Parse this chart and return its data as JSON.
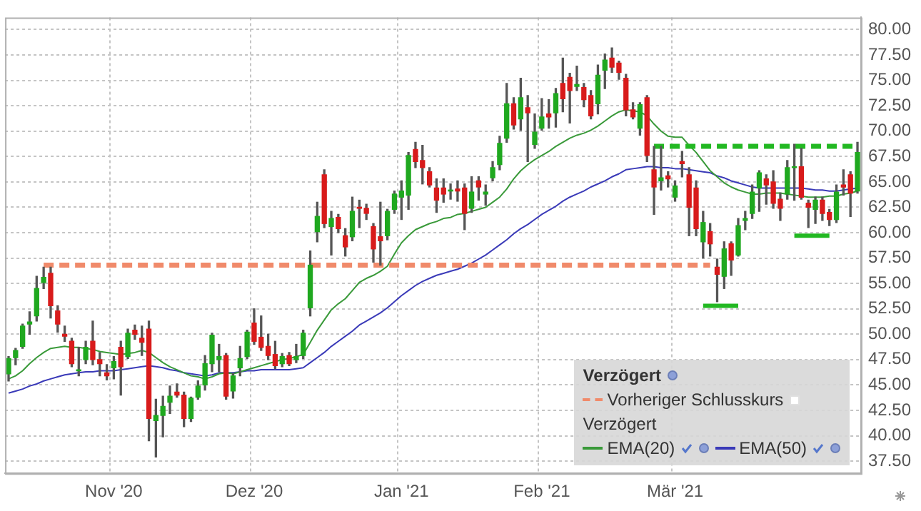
{
  "chart_data": {
    "type": "candlestick",
    "categories": [
      null,
      null,
      null,
      null,
      null,
      null,
      null,
      null,
      null,
      null,
      null,
      null,
      null,
      null,
      null,
      "Nov '20",
      null,
      null,
      null,
      null,
      null,
      null,
      null,
      null,
      null,
      null,
      null,
      null,
      null,
      null,
      null,
      null,
      null,
      null,
      null,
      "Dez '20",
      null,
      null,
      null,
      null,
      null,
      null,
      null,
      null,
      null,
      null,
      null,
      null,
      null,
      null,
      null,
      null,
      null,
      null,
      null,
      null,
      "Jan '21",
      null,
      null,
      null,
      null,
      null,
      null,
      null,
      null,
      null,
      null,
      null,
      null,
      null,
      null,
      null,
      null,
      null,
      null,
      null,
      "Feb '21",
      null,
      null,
      null,
      null,
      null,
      null,
      null,
      null,
      null,
      null,
      null,
      null,
      null,
      null,
      null,
      null,
      null,
      null,
      "Mär '21",
      null,
      null,
      null,
      null,
      null,
      null,
      null,
      null,
      null,
      null,
      null,
      null,
      null,
      null,
      null,
      null,
      null,
      null,
      null,
      null,
      null,
      null,
      null,
      null,
      null,
      null
    ],
    "ohlc": [
      [
        46.1,
        47.8,
        45.4,
        47.6
      ],
      [
        47.7,
        48.6,
        47.0,
        48.4
      ],
      [
        48.8,
        51.0,
        48.6,
        50.8
      ],
      [
        51.0,
        52.2,
        50.0,
        51.2
      ],
      [
        51.8,
        55.7,
        51.3,
        54.5
      ],
      [
        55.1,
        56.6,
        54.5,
        55.6
      ],
      [
        56.0,
        56.6,
        51.6,
        52.8
      ],
      [
        52.3,
        52.8,
        50.2,
        51.0
      ],
      [
        50.0,
        50.8,
        49.3,
        49.8
      ],
      [
        49.3,
        49.6,
        46.8,
        47.1
      ],
      [
        46.4,
        48.7,
        45.9,
        46.5
      ],
      [
        47.5,
        49.3,
        47.1,
        48.7
      ],
      [
        49.3,
        51.3,
        47.0,
        47.5
      ],
      [
        47.5,
        48.2,
        45.9,
        47.1
      ],
      [
        46.2,
        47.0,
        45.5,
        45.9
      ],
      [
        46.7,
        47.8,
        45.6,
        47.3
      ],
      [
        48.7,
        49.3,
        44.0,
        46.8
      ],
      [
        47.8,
        50.5,
        47.6,
        50.1
      ],
      [
        50.4,
        50.9,
        49.5,
        50.0
      ],
      [
        49.6,
        50.8,
        47.9,
        49.2
      ],
      [
        50.5,
        51.3,
        39.5,
        41.7
      ],
      [
        41.5,
        43.6,
        37.9,
        42.0
      ],
      [
        42.0,
        43.9,
        39.9,
        42.9
      ],
      [
        43.3,
        44.9,
        42.2,
        43.9
      ],
      [
        44.3,
        45.1,
        43.8,
        44.0
      ],
      [
        44.0,
        44.3,
        40.9,
        41.7
      ],
      [
        41.7,
        43.8,
        41.4,
        43.7
      ],
      [
        43.8,
        45.4,
        43.6,
        44.9
      ],
      [
        45.0,
        47.9,
        44.5,
        47.1
      ],
      [
        47.1,
        50.1,
        46.3,
        49.9
      ],
      [
        47.5,
        49.0,
        46.3,
        47.8
      ],
      [
        47.9,
        48.1,
        43.6,
        43.9
      ],
      [
        44.4,
        46.1,
        43.7,
        45.9
      ],
      [
        46.7,
        48.8,
        45.9,
        47.6
      ],
      [
        47.8,
        50.4,
        47.6,
        50.2
      ],
      [
        51.1,
        52.5,
        49.0,
        49.3
      ],
      [
        49.7,
        51.8,
        48.4,
        48.7
      ],
      [
        48.8,
        50.0,
        47.5,
        47.9
      ],
      [
        48.0,
        49.3,
        46.6,
        46.9
      ],
      [
        47.1,
        48.1,
        46.8,
        47.8
      ],
      [
        47.9,
        48.2,
        46.9,
        47.1
      ],
      [
        47.5,
        49.0,
        47.2,
        47.8
      ],
      [
        47.9,
        50.4,
        47.6,
        50.1
      ],
      [
        52.6,
        58.2,
        51.8,
        56.8
      ],
      [
        60.1,
        63.0,
        59.1,
        61.6
      ],
      [
        65.7,
        66.2,
        60.5,
        60.9
      ],
      [
        60.6,
        62.1,
        57.8,
        61.4
      ],
      [
        61.5,
        61.8,
        60.0,
        60.4
      ],
      [
        59.7,
        60.4,
        57.7,
        58.6
      ],
      [
        59.6,
        63.5,
        59.2,
        62.1
      ],
      [
        62.5,
        63.2,
        60.5,
        62.4
      ],
      [
        62.4,
        62.8,
        61.3,
        61.9
      ],
      [
        60.6,
        60.9,
        57.1,
        58.4
      ],
      [
        59.6,
        63.0,
        56.8,
        59.2
      ],
      [
        59.7,
        62.3,
        59.3,
        62.1
      ],
      [
        62.3,
        64.1,
        61.9,
        63.8
      ],
      [
        63.5,
        65.1,
        61.3,
        64.1
      ],
      [
        63.7,
        67.9,
        62.3,
        67.6
      ],
      [
        68.2,
        68.9,
        66.4,
        67.0
      ],
      [
        67.1,
        68.6,
        64.8,
        66.4
      ],
      [
        66.0,
        66.4,
        64.5,
        64.7
      ],
      [
        64.4,
        65.3,
        62.0,
        63.2
      ],
      [
        64.4,
        65.3,
        63.0,
        63.8
      ],
      [
        64.1,
        64.8,
        63.3,
        64.2
      ],
      [
        64.3,
        65.1,
        63.1,
        64.1
      ],
      [
        64.4,
        64.8,
        60.3,
        61.9
      ],
      [
        62.4,
        65.5,
        62.0,
        64.0
      ],
      [
        65.1,
        65.5,
        63.2,
        64.5
      ],
      [
        63.8,
        64.7,
        62.7,
        64.0
      ],
      [
        65.4,
        67.0,
        65.1,
        66.4
      ],
      [
        66.7,
        69.5,
        66.2,
        68.8
      ],
      [
        69.3,
        74.7,
        68.9,
        72.7
      ],
      [
        72.7,
        73.3,
        70.2,
        70.6
      ],
      [
        71.2,
        75.2,
        70.1,
        73.3
      ],
      [
        72.3,
        73.5,
        67.0,
        71.8
      ],
      [
        68.7,
        71.7,
        68.3,
        69.9
      ],
      [
        70.3,
        73.2,
        70.1,
        71.4
      ],
      [
        71.7,
        73.1,
        70.3,
        71.4
      ],
      [
        71.8,
        74.2,
        70.4,
        73.7
      ],
      [
        74.7,
        77.2,
        71.9,
        73.2
      ],
      [
        75.3,
        75.7,
        70.8,
        74.0
      ],
      [
        74.4,
        76.4,
        74.0,
        74.6
      ],
      [
        74.3,
        74.7,
        72.4,
        73.1
      ],
      [
        73.5,
        74.0,
        71.2,
        71.5
      ],
      [
        72.7,
        76.5,
        71.7,
        75.5
      ],
      [
        76.0,
        77.6,
        74.2,
        77.0
      ],
      [
        77.2,
        78.2,
        75.8,
        76.3
      ],
      [
        76.7,
        76.9,
        75.1,
        75.8
      ],
      [
        75.2,
        75.6,
        71.5,
        72.1
      ],
      [
        72.1,
        72.8,
        71.2,
        71.4
      ],
      [
        70.3,
        72.8,
        69.6,
        72.6
      ],
      [
        73.3,
        73.5,
        67.0,
        67.6
      ],
      [
        66.2,
        68.5,
        61.8,
        64.5
      ],
      [
        65.1,
        68.5,
        64.2,
        65.4
      ],
      [
        65.6,
        66.0,
        64.5,
        65.3
      ],
      [
        63.5,
        65.1,
        63.1,
        64.6
      ],
      [
        67.0,
        68.0,
        65.5,
        66.8
      ],
      [
        65.7,
        66.4,
        59.7,
        62.5
      ],
      [
        64.4,
        65.1,
        59.7,
        60.4
      ],
      [
        59.1,
        62.1,
        57.5,
        61.0
      ],
      [
        60.1,
        60.9,
        57.7,
        58.9
      ],
      [
        56.6,
        57.4,
        53.2,
        55.9
      ],
      [
        55.7,
        59.1,
        54.5,
        58.4
      ],
      [
        58.9,
        59.1,
        55.8,
        57.3
      ],
      [
        57.8,
        61.4,
        57.7,
        60.7
      ],
      [
        61.2,
        62.1,
        60.3,
        61.4
      ],
      [
        61.9,
        64.7,
        61.4,
        64.0
      ],
      [
        64.4,
        66.1,
        62.1,
        65.9
      ],
      [
        65.3,
        65.7,
        62.8,
        64.7
      ],
      [
        65.0,
        66.1,
        62.4,
        62.9
      ],
      [
        63.3,
        63.9,
        61.2,
        62.4
      ],
      [
        63.8,
        67.1,
        63.3,
        66.4
      ],
      [
        66.4,
        68.7,
        63.2,
        66.5
      ],
      [
        66.5,
        68.3,
        63.3,
        63.5
      ],
      [
        62.9,
        63.2,
        60.5,
        62.5
      ],
      [
        62.3,
        63.5,
        60.9,
        63.2
      ],
      [
        63.2,
        63.5,
        61.2,
        61.9
      ],
      [
        62.0,
        62.3,
        60.7,
        61.3
      ],
      [
        61.3,
        64.7,
        61.0,
        64.0
      ],
      [
        64.7,
        66.2,
        63.7,
        64.5
      ],
      [
        65.7,
        66.0,
        61.6,
        63.9
      ],
      [
        64.1,
        68.9,
        63.9,
        67.9
      ]
    ],
    "colors": [
      "#1fa81f",
      "#1fa81f",
      "#1fa81f",
      "#1fa81f",
      "#1fa81f",
      "#1fa81f",
      "#d81b1b",
      "#d81b1b",
      "#d81b1b",
      "#d81b1b",
      "#1fa81f",
      "#1fa81f",
      "#d81b1b",
      "#d81b1b",
      "#d81b1b",
      "#1fa81f",
      "#d81b1b",
      "#1fa81f",
      "#d81b1b",
      "#d81b1b",
      "#d81b1b",
      "#1fa81f",
      "#1fa81f",
      "#1fa81f",
      "#d81b1b",
      "#d81b1b",
      "#1fa81f",
      "#1fa81f",
      "#1fa81f",
      "#1fa81f",
      "#1fa81f",
      "#d81b1b",
      "#1fa81f",
      "#1fa81f",
      "#1fa81f",
      "#d81b1b",
      "#d81b1b",
      "#d81b1b",
      "#d81b1b",
      "#1fa81f",
      "#d81b1b",
      "#1fa81f",
      "#1fa81f",
      "#1fa81f",
      "#1fa81f",
      "#d81b1b",
      "#1fa81f",
      "#d81b1b",
      "#d81b1b",
      "#1fa81f",
      "#d81b1b",
      "#d81b1b",
      "#d81b1b",
      "#d81b1b",
      "#1fa81f",
      "#1fa81f",
      "#1fa81f",
      "#1fa81f",
      "#d81b1b",
      "#d81b1b",
      "#d81b1b",
      "#d81b1b",
      "#d81b1b",
      "#1fa81f",
      "#d81b1b",
      "#d81b1b",
      "#1fa81f",
      "#d81b1b",
      "#1fa81f",
      "#1fa81f",
      "#1fa81f",
      "#1fa81f",
      "#d81b1b",
      "#1fa81f",
      "#d81b1b",
      "#1fa81f",
      "#1fa81f",
      "#d81b1b",
      "#1fa81f",
      "#d81b1b",
      "#d81b1b",
      "#1fa81f",
      "#d81b1b",
      "#d81b1b",
      "#1fa81f",
      "#1fa81f",
      "#d81b1b",
      "#d81b1b",
      "#d81b1b",
      "#d81b1b",
      "#1fa81f",
      "#d81b1b",
      "#d81b1b",
      "#1fa81f",
      "#d81b1b",
      "#1fa81f",
      "#d81b1b",
      "#d81b1b",
      "#d81b1b",
      "#1fa81f",
      "#d81b1b",
      "#d81b1b",
      "#1fa81f",
      "#d81b1b",
      "#1fa81f",
      "#1fa81f",
      "#1fa81f",
      "#1fa81f",
      "#d81b1b",
      "#d81b1b",
      "#d81b1b",
      "#1fa81f",
      "#1fa81f",
      "#d81b1b",
      "#d81b1b",
      "#1fa81f",
      "#d81b1b",
      "#d81b1b",
      "#1fa81f",
      "#d81b1b",
      "#d81b1b",
      "#1fa81f"
    ],
    "series": [
      {
        "type": "line",
        "name": "Vorheriger Schlusskurs",
        "color": "#f08a6a",
        "line_style": "dashed",
        "values": [
          null,
          null,
          null,
          null,
          null,
          56.8,
          56.8,
          56.8,
          56.8,
          56.8,
          56.8,
          56.8,
          56.8,
          56.8,
          56.8,
          56.8,
          56.8,
          56.8,
          56.8,
          56.8,
          56.8,
          56.8,
          56.8,
          56.8,
          56.8,
          56.8,
          56.8,
          56.8,
          56.8,
          56.8,
          56.8,
          56.8,
          56.8,
          56.8,
          56.8,
          56.8,
          56.8,
          56.8,
          56.8,
          56.8,
          56.8,
          56.8,
          56.8,
          56.8,
          56.8,
          56.8,
          56.8,
          56.8,
          56.8,
          56.8,
          56.8,
          56.8,
          56.8,
          56.8,
          56.8,
          56.8,
          56.8,
          56.8,
          56.8,
          56.8,
          56.8,
          56.8,
          56.8,
          56.8,
          56.8,
          56.8,
          56.8,
          56.8,
          56.8,
          56.8,
          56.8,
          56.8,
          56.8,
          56.8,
          56.8,
          56.8,
          56.8,
          56.8,
          56.8,
          56.8,
          56.8,
          56.8,
          56.8,
          56.8,
          56.8,
          56.8,
          56.8,
          56.8,
          56.8,
          56.8,
          56.8,
          56.8,
          56.8,
          56.8,
          56.8,
          56.8,
          56.8,
          56.8,
          56.8,
          56.8,
          56.8,
          null,
          null,
          null,
          null,
          null,
          null,
          null,
          null,
          null,
          null,
          null,
          null,
          null,
          null,
          null,
          null,
          null,
          null,
          null,
          null,
          null
        ]
      },
      {
        "type": "line",
        "color": "#22b822",
        "line_style": "dashed",
        "values": [
          null,
          null,
          null,
          null,
          null,
          null,
          null,
          null,
          null,
          null,
          null,
          null,
          null,
          null,
          null,
          null,
          null,
          null,
          null,
          null,
          null,
          null,
          null,
          null,
          null,
          null,
          null,
          null,
          null,
          null,
          null,
          null,
          null,
          null,
          null,
          null,
          null,
          null,
          null,
          null,
          null,
          null,
          null,
          null,
          null,
          null,
          null,
          null,
          null,
          null,
          null,
          null,
          null,
          null,
          null,
          null,
          null,
          null,
          null,
          null,
          null,
          null,
          null,
          null,
          null,
          null,
          null,
          null,
          null,
          null,
          null,
          null,
          null,
          null,
          null,
          null,
          null,
          null,
          null,
          null,
          null,
          null,
          null,
          null,
          null,
          null,
          null,
          null,
          null,
          null,
          null,
          null,
          68.5,
          68.5,
          68.5,
          68.5,
          68.5,
          68.5,
          68.5,
          68.5,
          68.5,
          68.5,
          68.5,
          68.5,
          68.5,
          68.5,
          68.5,
          68.5,
          68.5,
          68.5,
          68.5,
          68.5,
          68.5,
          68.5,
          68.5,
          68.5,
          68.5,
          68.5,
          68.5,
          68.5,
          68.5,
          68.5
        ]
      },
      {
        "type": "line",
        "color": "#22b822",
        "line_style": "solid",
        "values": [
          null,
          null,
          null,
          null,
          null,
          null,
          null,
          null,
          null,
          null,
          null,
          null,
          null,
          null,
          null,
          null,
          null,
          null,
          null,
          null,
          null,
          null,
          null,
          null,
          null,
          null,
          null,
          null,
          null,
          null,
          null,
          null,
          null,
          null,
          null,
          null,
          null,
          null,
          null,
          null,
          null,
          null,
          null,
          null,
          null,
          null,
          null,
          null,
          null,
          null,
          null,
          null,
          null,
          null,
          null,
          null,
          null,
          null,
          null,
          null,
          null,
          null,
          null,
          null,
          null,
          null,
          null,
          null,
          null,
          null,
          null,
          null,
          null,
          null,
          null,
          null,
          null,
          null,
          null,
          null,
          null,
          null,
          null,
          null,
          null,
          null,
          null,
          null,
          null,
          null,
          null,
          null,
          null,
          null,
          null,
          null,
          null,
          null,
          null,
          52.8,
          52.8,
          52.8,
          52.8,
          52.8,
          52.8,
          null,
          null,
          null,
          null,
          null,
          null,
          null,
          null,
          null,
          null,
          null,
          null,
          null,
          null,
          null,
          null,
          null
        ]
      },
      {
        "type": "line",
        "color": "#22b822",
        "line_style": "solid",
        "values": [
          null,
          null,
          null,
          null,
          null,
          null,
          null,
          null,
          null,
          null,
          null,
          null,
          null,
          null,
          null,
          null,
          null,
          null,
          null,
          null,
          null,
          null,
          null,
          null,
          null,
          null,
          null,
          null,
          null,
          null,
          null,
          null,
          null,
          null,
          null,
          null,
          null,
          null,
          null,
          null,
          null,
          null,
          null,
          null,
          null,
          null,
          null,
          null,
          null,
          null,
          null,
          null,
          null,
          null,
          null,
          null,
          null,
          null,
          null,
          null,
          null,
          null,
          null,
          null,
          null,
          null,
          null,
          null,
          null,
          null,
          null,
          null,
          null,
          null,
          null,
          null,
          null,
          null,
          null,
          null,
          null,
          null,
          null,
          null,
          null,
          null,
          null,
          null,
          null,
          null,
          null,
          null,
          null,
          null,
          null,
          null,
          null,
          null,
          null,
          null,
          null,
          null,
          null,
          null,
          null,
          null,
          null,
          null,
          null,
          null,
          null,
          null,
          59.7,
          59.7,
          59.7,
          59.7,
          59.7,
          59.7,
          null,
          null,
          null,
          null
        ]
      },
      {
        "type": "line",
        "name": "EMA(20)",
        "color": "#3a9a3a",
        "line_style": "solid",
        "values": [
          45.6,
          45.9,
          46.4,
          47.1,
          47.7,
          48.2,
          48.6,
          48.7,
          48.8,
          48.7,
          48.7,
          48.6,
          48.5,
          48.3,
          48.2,
          48.1,
          48.0,
          48.1,
          48.2,
          48.4,
          48.2,
          47.7,
          47.2,
          46.8,
          46.5,
          46.2,
          45.9,
          45.8,
          45.6,
          45.8,
          46.1,
          46.2,
          46.1,
          46.3,
          46.5,
          46.7,
          46.9,
          47.1,
          47.3,
          47.5,
          47.6,
          47.8,
          48.0,
          49.2,
          50.4,
          51.4,
          52.4,
          53.0,
          53.5,
          54.3,
          55.1,
          55.5,
          55.8,
          56.2,
          56.7,
          57.9,
          59.0,
          59.7,
          60.3,
          60.6,
          60.9,
          61.1,
          61.4,
          61.5,
          61.8,
          61.9,
          62.1,
          62.3,
          62.5,
          63.0,
          63.5,
          64.3,
          65.3,
          66.1,
          66.7,
          67.2,
          67.6,
          68.0,
          68.5,
          68.9,
          69.3,
          69.6,
          69.8,
          70.1,
          70.5,
          71.0,
          71.5,
          71.9,
          72.1,
          72.0,
          71.9,
          71.5,
          70.7,
          70.0,
          69.5,
          69.4,
          69.4,
          68.6,
          67.9,
          67.0,
          66.1,
          65.5,
          64.9,
          64.5,
          64.2,
          64.0,
          63.8,
          63.8,
          63.9,
          63.9,
          63.9,
          63.8,
          63.7,
          63.6,
          63.5,
          63.5,
          63.5,
          63.6,
          63.6,
          63.8,
          63.9,
          64.1
        ]
      },
      {
        "type": "line",
        "name": "EMA(50)",
        "color": "#3a3ab8",
        "line_style": "solid",
        "values": [
          44.2,
          44.4,
          44.6,
          44.9,
          45.1,
          45.4,
          45.6,
          45.8,
          46.0,
          46.1,
          46.2,
          46.3,
          46.3,
          46.4,
          46.4,
          46.4,
          46.5,
          46.6,
          46.7,
          46.8,
          46.9,
          46.8,
          46.7,
          46.5,
          46.4,
          46.2,
          46.1,
          46.0,
          45.9,
          46.0,
          46.2,
          46.2,
          46.2,
          46.3,
          46.4,
          46.4,
          46.5,
          46.5,
          46.5,
          46.5,
          46.5,
          46.6,
          46.7,
          47.2,
          47.7,
          48.2,
          48.8,
          49.3,
          49.8,
          50.3,
          50.9,
          51.3,
          51.7,
          52.1,
          52.6,
          53.2,
          53.8,
          54.3,
          54.8,
          55.2,
          55.5,
          55.8,
          56.0,
          56.2,
          56.4,
          56.7,
          57.0,
          57.4,
          57.8,
          58.3,
          58.8,
          59.3,
          59.9,
          60.4,
          60.8,
          61.3,
          61.8,
          62.2,
          62.6,
          63.1,
          63.5,
          63.8,
          64.1,
          64.5,
          64.8,
          65.1,
          65.5,
          65.8,
          66.2,
          66.3,
          66.4,
          66.5,
          66.5,
          66.4,
          66.4,
          66.3,
          66.3,
          66.2,
          66.1,
          66.0,
          65.9,
          65.6,
          65.4,
          65.1,
          64.9,
          64.7,
          64.5,
          64.4,
          64.4,
          64.4,
          64.4,
          64.4,
          64.4,
          64.4,
          64.3,
          64.2,
          64.2,
          64.1,
          64.1,
          64.2,
          64.3,
          64.4
        ]
      }
    ],
    "legend_title": "Verzögert",
    "annotations": [
      "Verzögert"
    ],
    "legend": "bottom right",
    "grid": true,
    "ylim": [
      36.3,
      81.2
    ],
    "yticks": [
      {
        "value": 37.5,
        "label": "37.50"
      },
      {
        "value": 40,
        "label": "40.00"
      },
      {
        "value": 42.5,
        "label": "42.50"
      },
      {
        "value": 45,
        "label": "45.00"
      },
      {
        "value": 47.5,
        "label": "47.50"
      },
      {
        "value": 50,
        "label": "50.00"
      },
      {
        "value": 52.5,
        "label": "52.50"
      },
      {
        "value": 55,
        "label": "55.00"
      },
      {
        "value": 57.5,
        "label": "57.50"
      },
      {
        "value": 60,
        "label": "60.00"
      },
      {
        "value": 62.5,
        "label": "62.50"
      },
      {
        "value": 65,
        "label": "65.00"
      },
      {
        "value": 67.5,
        "label": "67.50"
      },
      {
        "value": 70,
        "label": "70.00"
      },
      {
        "value": 72.5,
        "label": "72.50"
      },
      {
        "value": 75,
        "label": "75.00"
      },
      {
        "value": 77.5,
        "label": "77.50"
      },
      {
        "value": 80,
        "label": "80.00"
      }
    ]
  }
}
